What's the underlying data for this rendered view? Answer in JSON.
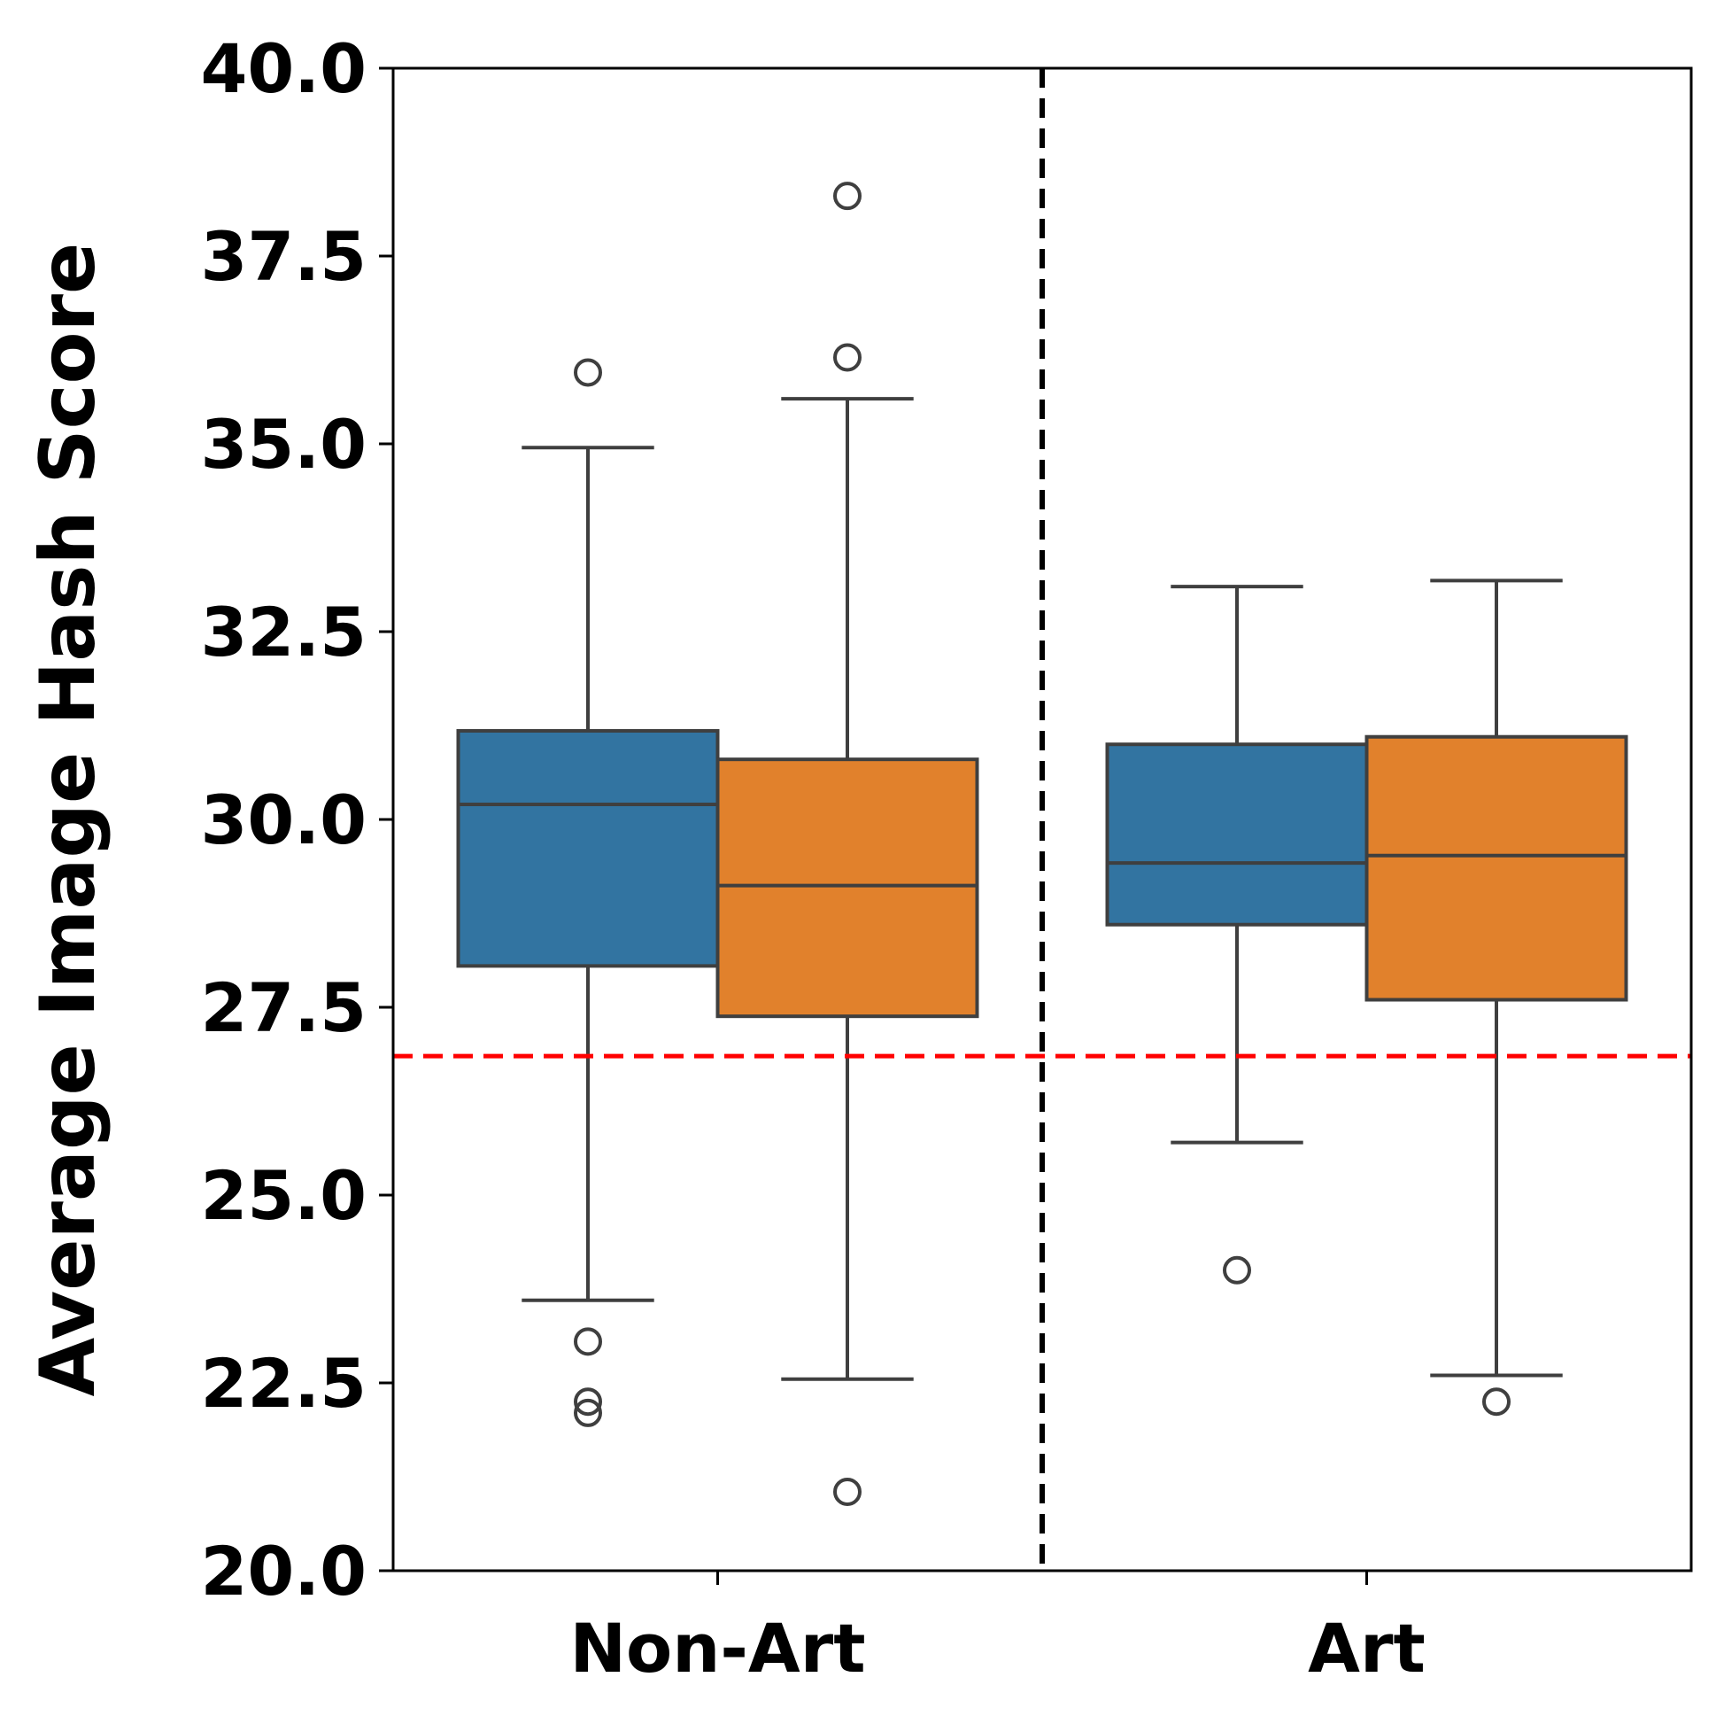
{
  "chart_data": {
    "type": "box",
    "title": "",
    "xlabel": "",
    "ylabel": "Average Image Hash Score",
    "ylim": [
      20.0,
      40.0
    ],
    "yticks": [
      "20.0",
      "22.5",
      "25.0",
      "27.5",
      "30.0",
      "32.5",
      "35.0",
      "37.5",
      "40.0"
    ],
    "categories": [
      "Non-Art",
      "Art"
    ],
    "grid": false,
    "legend": "none",
    "series": [
      {
        "color": "#3274a1",
        "boxes": [
          {
            "whisker_low": 23.6,
            "q1": 28.05,
            "median": 30.2,
            "q3": 31.18,
            "whisker_high": 34.95,
            "outliers": [
              35.95,
              23.05,
              22.25,
              22.1
            ]
          },
          {
            "whisker_low": 25.7,
            "q1": 28.6,
            "median": 29.42,
            "q3": 31.0,
            "whisker_high": 33.1,
            "outliers": [
              24.0
            ]
          }
        ]
      },
      {
        "color": "#e1812c",
        "boxes": [
          {
            "whisker_low": 22.55,
            "q1": 27.38,
            "median": 29.12,
            "q3": 30.8,
            "whisker_high": 35.6,
            "outliers": [
              38.3,
              36.15,
              21.05
            ]
          },
          {
            "whisker_low": 22.6,
            "q1": 27.6,
            "median": 29.52,
            "q3": 31.1,
            "whisker_high": 33.18,
            "outliers": [
              22.25
            ]
          }
        ]
      }
    ],
    "reference_line": {
      "y": 26.85,
      "color": "#ff0000",
      "style": "dashed"
    },
    "separator": {
      "position": "between-categories",
      "color": "#000000",
      "style": "dashed"
    }
  }
}
